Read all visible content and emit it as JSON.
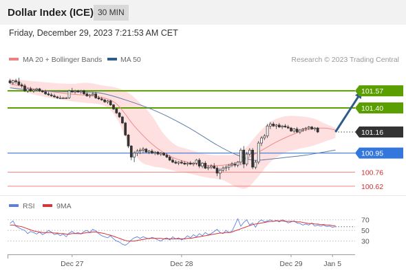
{
  "header": {
    "title": "Dollar Index (ICE)",
    "timeframe": "30 MIN"
  },
  "timestamp": "Friday, December 29, 2023 7:21:53 AM CET",
  "legend": {
    "ma20_label": "MA 20 + Bollinger Bands",
    "ma50_label": "MA 50",
    "copyright": "Research © 2023 Trading Central"
  },
  "rsi_legend": {
    "rsi": "RSI",
    "ma": "9MA"
  },
  "colors": {
    "green": "#5a9e00",
    "blue": "#3377dd",
    "red": "#e05050",
    "navy": "#2e5b8a",
    "dark": "#333333",
    "band": "#ffd6d6",
    "rsi": "#5a7fe0"
  },
  "chart_data": {
    "type": "candlestick",
    "ylim": [
      100.53,
      101.79
    ],
    "x_labels": [
      {
        "label": "Dec 27",
        "index": 21
      },
      {
        "label": "Dec 28",
        "index": 58
      },
      {
        "label": "Dec 29",
        "index": 95
      },
      {
        "label": "Jan 5",
        "index": 109
      }
    ],
    "candles": [
      [
        101.67,
        101.69,
        101.64,
        101.65
      ],
      [
        101.65,
        101.68,
        101.63,
        101.67
      ],
      [
        101.67,
        101.69,
        101.64,
        101.66
      ],
      [
        101.66,
        101.7,
        101.62,
        101.63
      ],
      [
        101.63,
        101.65,
        101.6,
        101.62
      ],
      [
        101.62,
        101.64,
        101.56,
        101.57
      ],
      [
        101.57,
        101.6,
        101.55,
        101.59
      ],
      [
        101.59,
        101.61,
        101.56,
        101.57
      ],
      [
        101.57,
        101.59,
        101.55,
        101.58
      ],
      [
        101.58,
        101.6,
        101.57,
        101.59
      ],
      [
        101.59,
        101.6,
        101.56,
        101.57
      ],
      [
        101.57,
        101.58,
        101.55,
        101.56
      ],
      [
        101.56,
        101.58,
        101.53,
        101.54
      ],
      [
        101.54,
        101.56,
        101.52,
        101.53
      ],
      [
        101.53,
        101.55,
        101.51,
        101.52
      ],
      [
        101.52,
        101.54,
        101.5,
        101.51
      ],
      [
        101.51,
        101.52,
        101.49,
        101.5
      ],
      [
        101.5,
        101.52,
        101.49,
        101.5
      ],
      [
        101.5,
        101.51,
        101.49,
        101.5
      ],
      [
        101.5,
        101.51,
        101.49,
        101.5
      ],
      [
        101.5,
        101.58,
        101.49,
        101.57
      ],
      [
        101.57,
        101.6,
        101.55,
        101.56
      ],
      [
        101.56,
        101.58,
        101.54,
        101.57
      ],
      [
        101.57,
        101.58,
        101.55,
        101.56
      ],
      [
        101.56,
        101.58,
        101.54,
        101.57
      ],
      [
        101.57,
        101.58,
        101.53,
        101.54
      ],
      [
        101.54,
        101.56,
        101.51,
        101.52
      ],
      [
        101.52,
        101.54,
        101.5,
        101.53
      ],
      [
        101.53,
        101.56,
        101.52,
        101.54
      ],
      [
        101.54,
        101.56,
        101.49,
        101.5
      ],
      [
        101.5,
        101.52,
        101.48,
        101.49
      ],
      [
        101.49,
        101.51,
        101.47,
        101.48
      ],
      [
        101.48,
        101.49,
        101.45,
        101.46
      ],
      [
        101.46,
        101.48,
        101.44,
        101.47
      ],
      [
        101.47,
        101.48,
        101.42,
        101.43
      ],
      [
        101.43,
        101.44,
        101.38,
        101.39
      ],
      [
        101.39,
        101.4,
        101.34,
        101.35
      ],
      [
        101.35,
        101.36,
        101.3,
        101.31
      ],
      [
        101.31,
        101.32,
        101.24,
        101.25
      ],
      [
        101.25,
        101.26,
        101.12,
        101.13
      ],
      [
        101.13,
        101.14,
        101.0,
        101.02
      ],
      [
        101.02,
        101.03,
        100.88,
        100.91
      ],
      [
        100.91,
        100.97,
        100.86,
        100.95
      ],
      [
        100.95,
        100.99,
        100.92,
        100.97
      ],
      [
        100.97,
        101.0,
        100.94,
        100.98
      ],
      [
        100.98,
        101.01,
        100.95,
        100.99
      ],
      [
        100.99,
        101.0,
        100.95,
        100.96
      ],
      [
        100.96,
        100.98,
        100.94,
        100.97
      ],
      [
        100.97,
        100.99,
        100.94,
        100.95
      ],
      [
        100.95,
        100.97,
        100.93,
        100.96
      ],
      [
        100.96,
        100.97,
        100.93,
        100.94
      ],
      [
        100.94,
        100.96,
        100.92,
        100.95
      ],
      [
        100.95,
        100.96,
        100.92,
        100.93
      ],
      [
        100.93,
        100.95,
        100.9,
        100.91
      ],
      [
        100.91,
        100.93,
        100.87,
        100.88
      ],
      [
        100.88,
        100.9,
        100.85,
        100.86
      ],
      [
        100.86,
        100.88,
        100.84,
        100.85
      ],
      [
        100.85,
        100.87,
        100.83,
        100.86
      ],
      [
        100.86,
        100.88,
        100.84,
        100.85
      ],
      [
        100.85,
        100.87,
        100.83,
        100.84
      ],
      [
        100.84,
        100.86,
        100.82,
        100.85
      ],
      [
        100.85,
        100.87,
        100.83,
        100.84
      ],
      [
        100.84,
        100.86,
        100.82,
        100.85
      ],
      [
        100.85,
        100.89,
        100.83,
        100.88
      ],
      [
        100.88,
        100.9,
        100.8,
        100.82
      ],
      [
        100.82,
        100.86,
        100.8,
        100.85
      ],
      [
        100.85,
        100.87,
        100.79,
        100.8
      ],
      [
        100.8,
        100.83,
        100.78,
        100.81
      ],
      [
        100.81,
        100.84,
        100.79,
        100.82
      ],
      [
        100.82,
        100.85,
        100.79,
        100.8
      ],
      [
        100.8,
        100.82,
        100.72,
        100.75
      ],
      [
        100.75,
        100.8,
        100.69,
        100.78
      ],
      [
        100.78,
        100.82,
        100.76,
        100.8
      ],
      [
        100.8,
        100.83,
        100.77,
        100.81
      ],
      [
        100.81,
        100.84,
        100.78,
        100.83
      ],
      [
        100.83,
        100.86,
        100.81,
        100.84
      ],
      [
        100.84,
        100.86,
        100.81,
        100.83
      ],
      [
        100.83,
        100.87,
        100.81,
        100.86
      ],
      [
        100.86,
        101.0,
        100.83,
        100.98
      ],
      [
        100.98,
        101.02,
        100.8,
        100.84
      ],
      [
        100.84,
        100.96,
        100.82,
        100.94
      ],
      [
        100.94,
        101.0,
        100.92,
        100.98
      ],
      [
        100.98,
        101.0,
        100.79,
        100.81
      ],
      [
        100.81,
        100.88,
        100.79,
        100.86
      ],
      [
        100.86,
        101.07,
        100.84,
        101.05
      ],
      [
        101.05,
        101.12,
        101.02,
        101.1
      ],
      [
        101.1,
        101.14,
        101.08,
        101.12
      ],
      [
        101.12,
        101.24,
        101.1,
        101.22
      ],
      [
        101.22,
        101.26,
        101.19,
        101.24
      ],
      [
        101.24,
        101.26,
        101.21,
        101.22
      ],
      [
        101.22,
        101.24,
        101.19,
        101.23
      ],
      [
        101.23,
        101.25,
        101.2,
        101.21
      ],
      [
        101.21,
        101.23,
        101.19,
        101.22
      ],
      [
        101.22,
        101.24,
        101.2,
        101.21
      ],
      [
        101.21,
        101.23,
        101.19,
        101.2
      ],
      [
        101.2,
        101.21,
        101.16,
        101.17
      ],
      [
        101.17,
        101.2,
        101.15,
        101.19
      ],
      [
        101.19,
        101.21,
        101.15,
        101.16
      ],
      [
        101.16,
        101.19,
        101.14,
        101.18
      ],
      [
        101.18,
        101.2,
        101.16,
        101.19
      ],
      [
        101.19,
        101.21,
        101.17,
        101.2
      ],
      [
        101.2,
        101.22,
        101.18,
        101.21
      ],
      [
        101.21,
        101.22,
        101.18,
        101.19
      ],
      [
        101.19,
        101.21,
        101.17,
        101.2
      ],
      [
        101.2,
        101.21,
        101.15,
        101.16
      ]
    ],
    "levels": [
      {
        "value": 101.57,
        "label": "101.57",
        "kind": "resistance"
      },
      {
        "value": 101.4,
        "label": "101.40",
        "kind": "resistance"
      },
      {
        "value": 101.16,
        "label": "101.16",
        "kind": "last"
      },
      {
        "value": 100.95,
        "label": "100.95",
        "kind": "pivot"
      },
      {
        "value": 100.76,
        "label": "100.76",
        "kind": "support"
      },
      {
        "value": 100.62,
        "label": "100.62",
        "kind": "support"
      }
    ],
    "ma50": [
      [
        0,
        101.6
      ],
      [
        10,
        101.57
      ],
      [
        20,
        101.56
      ],
      [
        30,
        101.55
      ],
      [
        40,
        101.47
      ],
      [
        50,
        101.36
      ],
      [
        60,
        101.21
      ],
      [
        70,
        101.03
      ],
      [
        76,
        100.94
      ],
      [
        82,
        100.88
      ],
      [
        88,
        100.89
      ],
      [
        94,
        100.91
      ],
      [
        100,
        100.93
      ],
      [
        106,
        100.96
      ],
      [
        110,
        100.98
      ]
    ],
    "ma20": [
      [
        0,
        101.64
      ],
      [
        10,
        101.58
      ],
      [
        20,
        101.54
      ],
      [
        30,
        101.51
      ],
      [
        36,
        101.44
      ],
      [
        42,
        101.22
      ],
      [
        48,
        101.04
      ],
      [
        54,
        100.92
      ],
      [
        60,
        100.86
      ],
      [
        66,
        100.83
      ],
      [
        72,
        100.83
      ],
      [
        78,
        100.87
      ],
      [
        84,
        100.96
      ],
      [
        90,
        101.06
      ],
      [
        96,
        101.14
      ],
      [
        100,
        101.18
      ],
      [
        106,
        101.2
      ],
      [
        110,
        101.18
      ]
    ],
    "bb_upper": [
      [
        0,
        101.69
      ],
      [
        10,
        101.66
      ],
      [
        20,
        101.64
      ],
      [
        26,
        101.65
      ],
      [
        32,
        101.62
      ],
      [
        36,
        101.6
      ],
      [
        40,
        101.55
      ],
      [
        44,
        101.45
      ],
      [
        48,
        101.32
      ],
      [
        52,
        101.14
      ],
      [
        56,
        101.03
      ],
      [
        60,
        100.99
      ],
      [
        66,
        100.94
      ],
      [
        72,
        100.93
      ],
      [
        78,
        100.96
      ],
      [
        84,
        101.15
      ],
      [
        88,
        101.26
      ],
      [
        92,
        101.31
      ],
      [
        96,
        101.32
      ],
      [
        102,
        101.3
      ],
      [
        106,
        101.25
      ],
      [
        110,
        101.2
      ]
    ],
    "bb_lower": [
      [
        0,
        101.6
      ],
      [
        10,
        101.52
      ],
      [
        20,
        101.47
      ],
      [
        26,
        101.45
      ],
      [
        32,
        101.42
      ],
      [
        36,
        101.3
      ],
      [
        40,
        101.05
      ],
      [
        44,
        100.87
      ],
      [
        48,
        100.82
      ],
      [
        52,
        100.8
      ],
      [
        56,
        100.77
      ],
      [
        60,
        100.75
      ],
      [
        66,
        100.71
      ],
      [
        72,
        100.68
      ],
      [
        76,
        100.62
      ],
      [
        80,
        100.6
      ],
      [
        84,
        100.72
      ],
      [
        88,
        100.86
      ],
      [
        92,
        100.94
      ],
      [
        96,
        100.98
      ],
      [
        102,
        101.02
      ],
      [
        106,
        101.06
      ],
      [
        110,
        101.1
      ]
    ],
    "forecast_arrow": {
      "from": [
        110,
        101.16
      ],
      "to": [
        119,
        101.57
      ]
    },
    "rsi": {
      "ticks": [
        70,
        50,
        30
      ],
      "ylim": [
        10,
        80
      ],
      "rsi_values": [
        63,
        68,
        58,
        55,
        52,
        50,
        44,
        48,
        46,
        43,
        47,
        42,
        45,
        50,
        47,
        42,
        44,
        40,
        43,
        38,
        45,
        48,
        44,
        46,
        43,
        48,
        50,
        46,
        52,
        49,
        44,
        40,
        38,
        36,
        40,
        34,
        30,
        28,
        24,
        22,
        26,
        32,
        36,
        38,
        35,
        38,
        36,
        34,
        37,
        35,
        32,
        30,
        34,
        36,
        32,
        38,
        34,
        36,
        32,
        35,
        40,
        36,
        42,
        38,
        44,
        40,
        46,
        42,
        44,
        48,
        52,
        46,
        44,
        50,
        46,
        48,
        60,
        72,
        58,
        65,
        70,
        60,
        64,
        56,
        66,
        70,
        66,
        68,
        70,
        67,
        69,
        66,
        70,
        68,
        64,
        66,
        68,
        64,
        63,
        60,
        62,
        60,
        64,
        58,
        60,
        58,
        60,
        57,
        58,
        56,
        57
      ],
      "ma_values": [
        60,
        60,
        59,
        58,
        57,
        55,
        53,
        51,
        49,
        48,
        47,
        46,
        46,
        46,
        46,
        45,
        45,
        44,
        44,
        43,
        43,
        44,
        44,
        44,
        44,
        45,
        46,
        46,
        47,
        47,
        46,
        45,
        44,
        42,
        41,
        39,
        37,
        35,
        33,
        31,
        30,
        30,
        30,
        31,
        32,
        33,
        34,
        35,
        35,
        35,
        35,
        35,
        34,
        34,
        34,
        34,
        34,
        34,
        34,
        34,
        35,
        35,
        36,
        37,
        38,
        39,
        40,
        41,
        42,
        43,
        44,
        45,
        45,
        46,
        46,
        47,
        49,
        51,
        53,
        55,
        57,
        59,
        61,
        62,
        63,
        64,
        65,
        66,
        67,
        67,
        68,
        68,
        68,
        67,
        67,
        67,
        67,
        66,
        66,
        65,
        64,
        63,
        63,
        62,
        62,
        61,
        61,
        60,
        60,
        59,
        59
      ]
    }
  }
}
